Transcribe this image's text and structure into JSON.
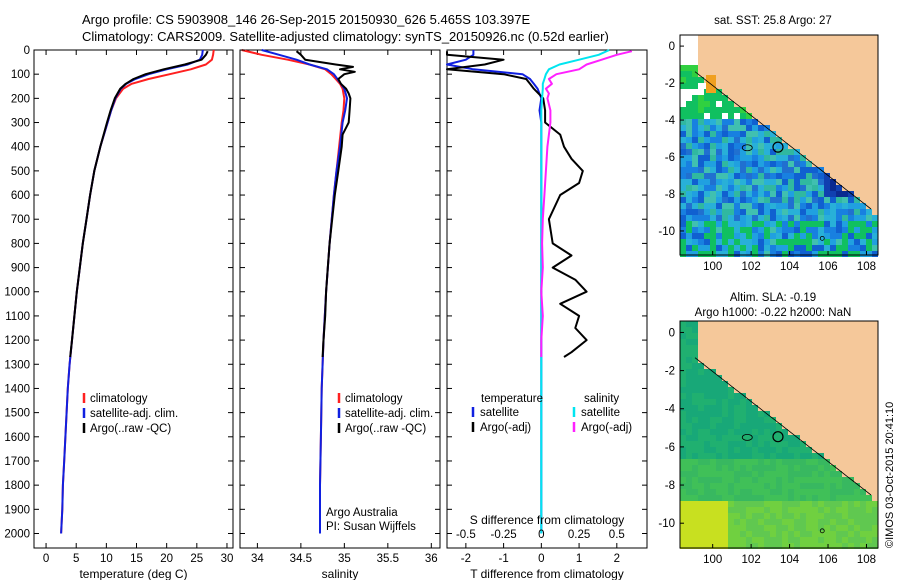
{
  "header": {
    "line1": "Argo profile: CS 5903908_146 26-Sep-2015 20150930_626 5.465S 103.397E",
    "line2": "Climatology: CARS2009. Satellite-adjusted climatology: synTS_20150926.nc (0.52d earlier)"
  },
  "colors": {
    "climatology": "#ff2020",
    "satellite": "#1020e0",
    "argo": "#000000",
    "sat_salinity": "#00e5f0",
    "argo_salinity": "#ff20ff",
    "land": "#f5c89a"
  },
  "watermark": "©IMOS 03-Oct-2015 20:41:10",
  "credits": {
    "line1": "Argo Australia",
    "line2": "PI: Susan Wijffels"
  },
  "chart_data": [
    {
      "type": "line",
      "id": "temperature-profile",
      "xlabel": "temperature (deg C)",
      "ylabel": "",
      "xlim": [
        -2,
        31
      ],
      "ylim": [
        2060,
        0
      ],
      "xticks": [
        0,
        5,
        10,
        15,
        20,
        25,
        30
      ],
      "xtick_labels": [
        "0",
        "5",
        "10",
        "15",
        "20",
        "25",
        "30"
      ],
      "yticks": [
        0,
        100,
        200,
        300,
        400,
        500,
        600,
        700,
        800,
        900,
        1000,
        1100,
        1200,
        1300,
        1400,
        1500,
        1600,
        1700,
        1800,
        1900,
        2000
      ],
      "ytick_labels": [
        "0",
        "100",
        "200",
        "300",
        "400",
        "500",
        "600",
        "700",
        "800",
        "900",
        "1000",
        "1100",
        "1200",
        "1300",
        "1400",
        "1500",
        "1600",
        "1700",
        "1800",
        "1900",
        "2000"
      ],
      "legend": [
        "climatology",
        "satellite-adj. clim.",
        "Argo(..raw -QC)"
      ],
      "series": [
        {
          "name": "climatology",
          "color": "#ff2020",
          "depth": [
            0,
            20,
            40,
            60,
            80,
            100,
            120,
            140,
            160,
            200,
            250,
            300,
            400,
            500,
            600,
            700,
            800,
            900,
            1000,
            1100,
            1200,
            1300,
            1400,
            1500,
            1600,
            1700,
            1800,
            1900,
            2000
          ],
          "values": [
            27.8,
            27.7,
            27.5,
            26.5,
            24.0,
            20.5,
            17.0,
            14.2,
            12.8,
            11.6,
            10.8,
            10.2,
            9.0,
            8.0,
            7.3,
            6.7,
            6.1,
            5.6,
            5.1,
            4.7,
            4.3,
            3.9,
            3.6,
            3.4,
            3.2,
            3.0,
            2.8,
            2.7,
            2.5
          ]
        },
        {
          "name": "satellite-adj. clim.",
          "color": "#1020e0",
          "depth": [
            0,
            20,
            40,
            60,
            80,
            100,
            120,
            140,
            160,
            200,
            250,
            300,
            400,
            500,
            600,
            700,
            800,
            900,
            1000,
            1100,
            1200,
            1300,
            1400,
            1500,
            1600,
            1700,
            1800,
            1900,
            2000
          ],
          "values": [
            26.0,
            25.9,
            25.5,
            23.5,
            20.0,
            17.0,
            14.8,
            13.3,
            12.4,
            11.5,
            10.8,
            10.2,
            9.0,
            8.0,
            7.3,
            6.7,
            6.1,
            5.6,
            5.1,
            4.7,
            4.3,
            3.9,
            3.6,
            3.4,
            3.2,
            3.0,
            2.8,
            2.7,
            2.5
          ]
        },
        {
          "name": "Argo(..raw -QC)",
          "color": "#000000",
          "depth": [
            5,
            20,
            40,
            60,
            80,
            100,
            120,
            140,
            160,
            200,
            250,
            300,
            400,
            500,
            600,
            700,
            800,
            900,
            1000,
            1100,
            1200,
            1270
          ],
          "values": [
            26.8,
            26.5,
            25.8,
            23.0,
            19.5,
            16.5,
            14.5,
            13.2,
            12.3,
            11.4,
            10.7,
            10.1,
            9.0,
            8.0,
            7.3,
            6.7,
            6.1,
            5.6,
            5.1,
            4.7,
            4.3,
            4.0
          ]
        }
      ]
    },
    {
      "type": "line",
      "id": "salinity-profile",
      "xlabel": "salinity",
      "xlim": [
        33.8,
        36.1
      ],
      "ylim": [
        2060,
        0
      ],
      "xticks": [
        34,
        34.5,
        35,
        35.5,
        36
      ],
      "xtick_labels": [
        "34",
        "34.5",
        "35",
        "35.5",
        "36"
      ],
      "legend": [
        "climatology",
        "satellite-adj. clim.",
        "Argo(..raw -QC)"
      ],
      "series": [
        {
          "name": "climatology",
          "color": "#ff2020",
          "depth": [
            0,
            20,
            40,
            60,
            80,
            100,
            120,
            140,
            160,
            200,
            250,
            300,
            400,
            500,
            600,
            800,
            1000,
            1200,
            1400,
            1600,
            1800,
            2000
          ],
          "values": [
            33.82,
            34.05,
            34.35,
            34.6,
            34.78,
            34.85,
            34.9,
            34.95,
            34.98,
            35.0,
            34.99,
            34.97,
            34.94,
            34.91,
            34.88,
            34.83,
            34.79,
            34.76,
            34.74,
            34.73,
            34.72,
            34.72
          ]
        },
        {
          "name": "satellite-adj. clim.",
          "color": "#1020e0",
          "depth": [
            0,
            20,
            40,
            60,
            80,
            100,
            120,
            140,
            160,
            200,
            250,
            300,
            400,
            500,
            600,
            800,
            1000,
            1200,
            1400,
            1600,
            1800,
            2000
          ],
          "values": [
            34.05,
            34.25,
            34.45,
            34.6,
            34.8,
            34.88,
            34.92,
            34.96,
            35.0,
            35.03,
            35.01,
            34.98,
            34.95,
            34.91,
            34.88,
            34.83,
            34.79,
            34.76,
            34.74,
            34.73,
            34.72,
            34.72
          ]
        },
        {
          "name": "Argo(..raw -QC)",
          "color": "#000000",
          "depth": [
            5,
            20,
            40,
            60,
            70,
            80,
            90,
            100,
            120,
            140,
            160,
            180,
            200,
            250,
            300,
            350,
            400,
            500,
            600,
            700,
            800,
            900,
            1000,
            1100,
            1200,
            1270
          ],
          "values": [
            34.45,
            34.5,
            34.55,
            34.9,
            35.1,
            34.95,
            35.12,
            35.0,
            34.93,
            34.96,
            35.02,
            35.05,
            35.07,
            35.06,
            35.05,
            34.98,
            34.97,
            34.93,
            34.89,
            34.86,
            34.83,
            34.81,
            34.79,
            34.78,
            34.76,
            34.75
          ]
        }
      ]
    },
    {
      "type": "line",
      "id": "difference-profile",
      "xlabel": "T difference from climatology",
      "xlabel_top": "S difference from climatology",
      "xlim": [
        -2.5,
        2.8
      ],
      "ylim": [
        2060,
        0
      ],
      "xticks": [
        -2,
        -1,
        0,
        1,
        2
      ],
      "xtick_labels": [
        "-2",
        "-1",
        "0",
        "1",
        "2"
      ],
      "s_xticks": [
        -0.5,
        -0.25,
        0,
        0.25,
        0.5
      ],
      "s_xtick_labels": [
        "-0.5",
        "-0.25",
        "0",
        "0.25",
        "0.5"
      ],
      "s_scale": 4,
      "legend_headers": [
        "temperature",
        "salinity"
      ],
      "legend": [
        "satellite",
        "Argo(-adj)",
        "satellite",
        "Argo(-adj)"
      ],
      "series": [
        {
          "name": "T satellite",
          "color": "#1020e0",
          "depth": [
            0,
            20,
            40,
            60,
            80,
            100,
            120,
            140,
            160,
            200,
            250,
            300,
            500,
            700,
            1000,
            1300,
            1600,
            2000
          ],
          "values": [
            -1.8,
            -1.8,
            -2.0,
            -2.5,
            -1.8,
            -0.5,
            -0.3,
            -0.2,
            -0.1,
            0.0,
            -0.05,
            0.0,
            0.0,
            0.0,
            0.0,
            0.0,
            0.0,
            0.0
          ]
        },
        {
          "name": "T Argo(-adj)",
          "color": "#000000",
          "depth": [
            5,
            20,
            40,
            60,
            80,
            100,
            120,
            140,
            160,
            200,
            250,
            300,
            350,
            400,
            450,
            500,
            550,
            600,
            700,
            800,
            850,
            900,
            950,
            1000,
            1050,
            1100,
            1150,
            1200,
            1250,
            1270
          ],
          "values": [
            -2.5,
            -2.5,
            -1.0,
            -1.5,
            -2.5,
            -1.0,
            -0.4,
            -0.3,
            -0.2,
            0.05,
            0.1,
            0.1,
            0.5,
            0.6,
            0.8,
            1.1,
            1.0,
            0.5,
            0.2,
            0.3,
            0.8,
            0.3,
            0.9,
            1.2,
            0.5,
            1.0,
            0.9,
            1.2,
            0.8,
            0.6
          ]
        },
        {
          "name": "S satellite",
          "color": "#00e5f0",
          "depth": [
            0,
            20,
            40,
            60,
            80,
            100,
            120,
            140,
            160,
            200,
            250,
            300,
            500,
            700,
            1000,
            1300,
            1600,
            2000
          ],
          "values": [
            0.45,
            0.38,
            0.25,
            0.12,
            0.05,
            0.03,
            0.02,
            0.01,
            0.01,
            0.005,
            0.0,
            0.0,
            0.0,
            0.0,
            0.0,
            0.0,
            0.0,
            0.0
          ]
        },
        {
          "name": "S Argo(-adj)",
          "color": "#ff20ff",
          "depth": [
            5,
            20,
            40,
            60,
            80,
            100,
            120,
            140,
            160,
            180,
            200,
            250,
            300,
            400,
            500,
            600,
            700,
            800,
            900,
            1000,
            1100,
            1200,
            1270
          ],
          "values": [
            0.6,
            0.5,
            0.4,
            0.3,
            0.25,
            0.1,
            0.05,
            0.07,
            0.03,
            0.05,
            0.04,
            0.06,
            0.06,
            0.04,
            0.03,
            0.02,
            0.01,
            0.005,
            0.01,
            0.0,
            0.01,
            0.0,
            0.0
          ]
        }
      ]
    },
    {
      "type": "heatmap",
      "id": "sst-map",
      "title": "sat. SST: 25.8  Argo: 27",
      "xlim": [
        98.3,
        108.6
      ],
      "ylim": [
        -11.3,
        0.6
      ],
      "xticks": [
        100,
        102,
        104,
        106,
        108
      ],
      "xtick_labels": [
        "100",
        "102",
        "104",
        "106",
        "108"
      ],
      "yticks": [
        0,
        -2,
        -4,
        -6,
        -8,
        -10
      ],
      "ytick_labels": [
        "0",
        "-2",
        "-4",
        "-6",
        "-8",
        "-10"
      ],
      "float_position": [
        103.397,
        -5.465
      ]
    },
    {
      "type": "heatmap",
      "id": "sla-map",
      "title_line1": "Altim. SLA: -0.19",
      "title_line2": "Argo h1000: -0.22  h2000: NaN",
      "xlim": [
        98.3,
        108.6
      ],
      "ylim": [
        -11.3,
        0.6
      ],
      "xticks": [
        100,
        102,
        104,
        106,
        108
      ],
      "xtick_labels": [
        "100",
        "102",
        "104",
        "106",
        "108"
      ],
      "yticks": [
        0,
        -2,
        -4,
        -6,
        -8,
        -10
      ],
      "ytick_labels": [
        "0",
        "-2",
        "-4",
        "-6",
        "-8",
        "-10"
      ],
      "float_position": [
        103.397,
        -5.465
      ]
    }
  ]
}
